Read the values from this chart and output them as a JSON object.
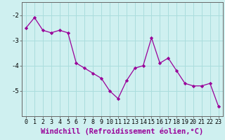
{
  "x": [
    0,
    1,
    2,
    3,
    4,
    5,
    6,
    7,
    8,
    9,
    10,
    11,
    12,
    13,
    14,
    15,
    16,
    17,
    18,
    19,
    20,
    21,
    22,
    23
  ],
  "y": [
    -2.5,
    -2.1,
    -2.6,
    -2.7,
    -2.6,
    -2.7,
    -3.9,
    -4.1,
    -4.3,
    -4.5,
    -5.0,
    -5.3,
    -4.6,
    -4.1,
    -4.0,
    -2.9,
    -3.9,
    -3.7,
    -4.2,
    -4.7,
    -4.8,
    -4.8,
    -4.7,
    -5.6
  ],
  "line_color": "#990099",
  "marker": "D",
  "marker_size": 2.2,
  "bg_color": "#cff0f0",
  "grid_color": "#aadddd",
  "xlabel": "Windchill (Refroidissement éolien,°C)",
  "xlabel_fontsize": 7.5,
  "yticks": [
    -2,
    -3,
    -4,
    -5
  ],
  "ylim": [
    -6.0,
    -1.5
  ],
  "xlim": [
    -0.5,
    23.5
  ],
  "tick_fontsize": 6.0
}
